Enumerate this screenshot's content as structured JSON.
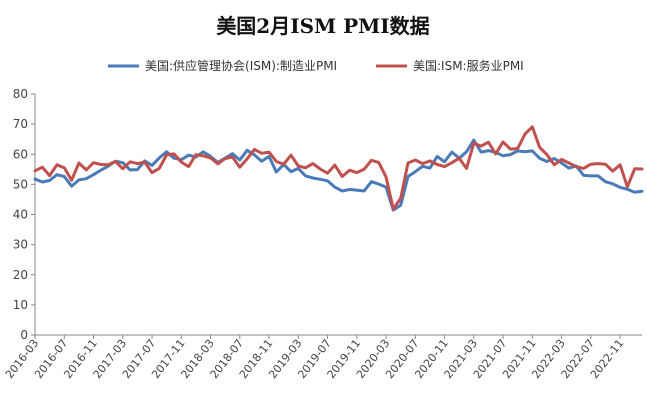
{
  "chart_data": {
    "type": "line",
    "title": "美国2月ISM PMI数据",
    "xlabel": "",
    "ylabel": "",
    "ylim": [
      0,
      80
    ],
    "yticks": [
      0,
      10,
      20,
      30,
      40,
      50,
      60,
      70,
      80
    ],
    "grid": false,
    "legend_position": "top",
    "x": [
      "2016-03",
      "2016-04",
      "2016-05",
      "2016-06",
      "2016-07",
      "2016-08",
      "2016-09",
      "2016-10",
      "2016-11",
      "2016-12",
      "2017-01",
      "2017-02",
      "2017-03",
      "2017-04",
      "2017-05",
      "2017-06",
      "2017-07",
      "2017-08",
      "2017-09",
      "2017-10",
      "2017-11",
      "2017-12",
      "2018-01",
      "2018-02",
      "2018-03",
      "2018-04",
      "2018-05",
      "2018-06",
      "2018-07",
      "2018-08",
      "2018-09",
      "2018-10",
      "2018-11",
      "2018-12",
      "2019-01",
      "2019-02",
      "2019-03",
      "2019-04",
      "2019-05",
      "2019-06",
      "2019-07",
      "2019-08",
      "2019-09",
      "2019-10",
      "2019-11",
      "2019-12",
      "2020-01",
      "2020-02",
      "2020-03",
      "2020-04",
      "2020-05",
      "2020-06",
      "2020-07",
      "2020-08",
      "2020-09",
      "2020-10",
      "2020-11",
      "2020-12",
      "2021-01",
      "2021-02",
      "2021-03",
      "2021-04",
      "2021-05",
      "2021-06",
      "2021-07",
      "2021-08",
      "2021-09",
      "2021-10",
      "2021-11",
      "2021-12",
      "2022-01",
      "2022-02",
      "2022-03",
      "2022-04",
      "2022-05",
      "2022-06",
      "2022-07",
      "2022-08",
      "2022-09",
      "2022-10",
      "2022-11",
      "2022-12",
      "2023-01",
      "2023-02"
    ],
    "xtick_labels": [
      "2016-03",
      "2016-07",
      "2016-11",
      "2017-03",
      "2017-07",
      "2017-11",
      "2018-03",
      "2018-07",
      "2018-11",
      "2019-03",
      "2019-07",
      "2019-11",
      "2020-03",
      "2020-07",
      "2020-11",
      "2021-03",
      "2021-07",
      "2021-11",
      "2022-03",
      "2022-07",
      "2022-11"
    ],
    "series": [
      {
        "name": "美国:供应管理协会(ISM):制造业PMI",
        "color": "#4a7ab8",
        "values": [
          51.8,
          50.8,
          51.3,
          53.2,
          52.6,
          49.4,
          51.5,
          51.9,
          53.2,
          54.7,
          56.0,
          57.7,
          57.2,
          54.8,
          54.9,
          57.8,
          56.3,
          58.8,
          60.8,
          58.7,
          58.2,
          59.7,
          59.1,
          60.8,
          59.3,
          57.3,
          58.7,
          60.2,
          58.1,
          61.3,
          59.8,
          57.7,
          59.3,
          54.1,
          56.6,
          54.2,
          55.3,
          52.8,
          52.1,
          51.7,
          51.2,
          49.1,
          47.8,
          48.3,
          48.1,
          47.8,
          50.9,
          50.1,
          49.1,
          41.5,
          43.1,
          52.6,
          54.2,
          56.0,
          55.4,
          59.3,
          57.5,
          60.7,
          58.7,
          60.8,
          64.7,
          60.7,
          61.2,
          60.6,
          59.5,
          59.9,
          61.1,
          60.8,
          61.1,
          58.7,
          57.6,
          58.6,
          57.1,
          55.4,
          56.1,
          53.0,
          52.8,
          52.8,
          50.9,
          50.2,
          49.0,
          48.4,
          47.4,
          47.7
        ]
      },
      {
        "name": "美国:ISM:服务业PMI",
        "color": "#c0504d",
        "values": [
          54.5,
          55.7,
          52.9,
          56.5,
          55.5,
          51.4,
          57.1,
          54.8,
          57.2,
          56.6,
          56.5,
          57.6,
          55.2,
          57.5,
          56.9,
          57.4,
          53.9,
          55.3,
          59.8,
          60.1,
          57.4,
          55.9,
          59.9,
          59.5,
          58.8,
          56.8,
          58.6,
          59.1,
          55.7,
          58.5,
          61.6,
          60.3,
          60.7,
          57.6,
          56.7,
          59.7,
          56.1,
          55.5,
          56.9,
          55.1,
          53.7,
          56.4,
          52.6,
          54.7,
          53.9,
          55.0,
          58.0,
          57.3,
          52.5,
          41.8,
          45.4,
          57.1,
          58.1,
          56.9,
          57.8,
          56.6,
          55.9,
          57.2,
          58.7,
          55.3,
          63.7,
          62.7,
          64.0,
          60.1,
          64.1,
          61.7,
          61.9,
          66.7,
          69.1,
          62.3,
          59.9,
          56.5,
          58.3,
          57.1,
          55.9,
          55.3,
          56.7,
          56.9,
          56.7,
          54.4,
          56.5,
          49.2,
          55.2,
          55.1
        ]
      }
    ]
  }
}
